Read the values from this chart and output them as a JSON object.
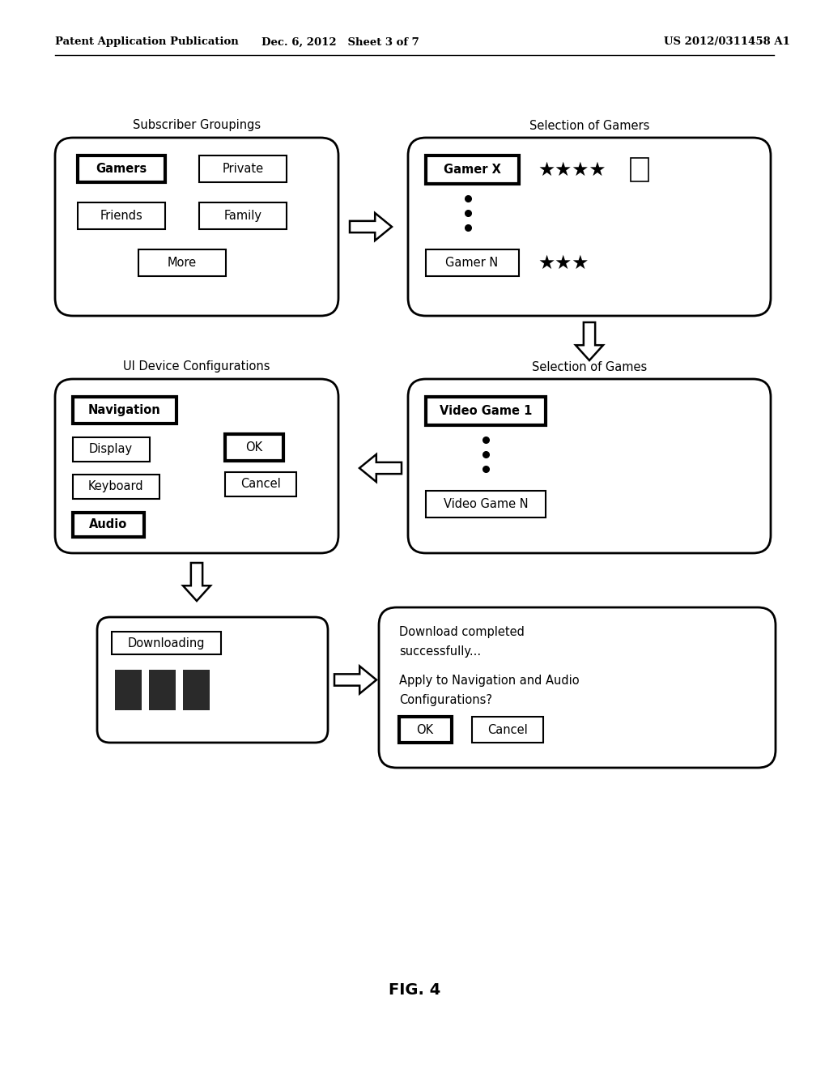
{
  "header_left": "Patent Application Publication",
  "header_center": "Dec. 6, 2012   Sheet 3 of 7",
  "header_right": "US 2012/0311458 A1",
  "figure_label": "FIG. 4",
  "bg_color": "#ffffff"
}
